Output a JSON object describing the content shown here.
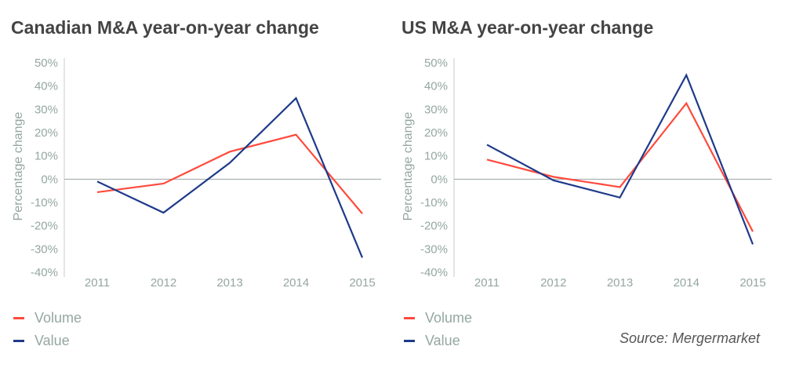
{
  "colors": {
    "volume": "#ff4a3d",
    "value": "#1e3a8a",
    "axis": "#94a7a2",
    "zero_line": "#9aa5a3"
  },
  "source": "Source: Mergermarket",
  "chart_data": [
    {
      "type": "line",
      "title": "Canadian M&A year-on-year change",
      "ylabel": "Percentage change",
      "xlabel": "",
      "categories": [
        "2011",
        "2012",
        "2013",
        "2014",
        "2015"
      ],
      "ylim": [
        -40,
        50
      ],
      "yticks": [
        "50%",
        "40%",
        "30%",
        "20%",
        "10%",
        "0%",
        "-10%",
        "-20%",
        "-30%",
        "-40%"
      ],
      "grid": false,
      "legend": "bottom-left",
      "series": [
        {
          "name": "Volume",
          "values": [
            -5.6,
            -1.9,
            11.8,
            19.1,
            -14.8
          ]
        },
        {
          "name": "Value",
          "values": [
            -1.0,
            -14.4,
            7.0,
            34.8,
            -33.7
          ]
        }
      ]
    },
    {
      "type": "line",
      "title": "US M&A year-on-year change",
      "ylabel": "Percentage change",
      "xlabel": "",
      "categories": [
        "2011",
        "2012",
        "2013",
        "2014",
        "2015"
      ],
      "ylim": [
        -40,
        50
      ],
      "yticks": [
        "50%",
        "40%",
        "30%",
        "20%",
        "10%",
        "0%",
        "-10%",
        "-20%",
        "-30%",
        "-40%"
      ],
      "grid": false,
      "legend": "bottom-left",
      "series": [
        {
          "name": "Volume",
          "values": [
            8.4,
            1.0,
            -3.4,
            32.6,
            -22.5
          ]
        },
        {
          "name": "Value",
          "values": [
            14.8,
            -0.5,
            -7.9,
            44.7,
            -28.0
          ]
        }
      ]
    }
  ]
}
